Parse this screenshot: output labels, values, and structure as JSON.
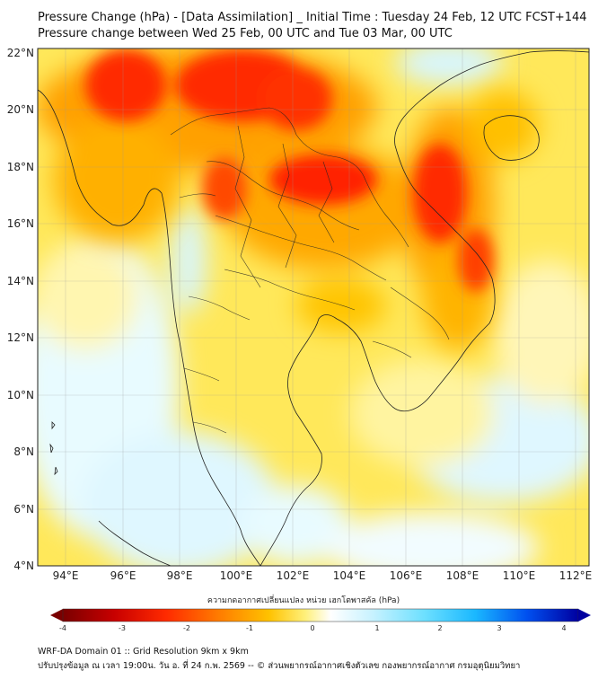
{
  "title_line1": "Pressure Change (hPa) - [Data Assimilation] _ Initial Time : Tuesday 24 Feb, 12 UTC FCST+144",
  "title_line2": "Pressure change between Wed 25 Feb, 00 UTC and Tue 03 Mar, 00 UTC",
  "lat_labels": [
    "22°N",
    "20°N",
    "18°N",
    "16°N",
    "14°N",
    "12°N",
    "10°N",
    "8°N",
    "6°N",
    "4°N"
  ],
  "lon_labels": [
    "94°E",
    "96°E",
    "98°E",
    "100°E",
    "102°E",
    "104°E",
    "106°E",
    "108°E",
    "110°E",
    "112°E"
  ],
  "colorbar": {
    "title": "ความกดอากาศเปลี่ยนแปลง หน่วย เฮกโตพาสคัล (hPa)",
    "ticks": [
      "-4",
      "-3",
      "-2",
      "-1",
      "0",
      "1",
      "2",
      "3",
      "4"
    ],
    "colors": [
      "#7a0000",
      "#d40000",
      "#ff3a00",
      "#ff9a00",
      "#ffd400",
      "#ffffc0",
      "#ffffff",
      "#d8f6ff",
      "#8ee8ff",
      "#22c4ff",
      "#0066ff",
      "#0000b0"
    ]
  },
  "footer_line1": "WRF-DA Domain 01 :: Grid Resolution 9km x 9km",
  "footer_line2": "ปรับปรุงข้อมูล ณ เวลา 19:00น. วัน อ. ที่ 24 ก.พ. 2569 -- © ส่วนพยากรณ์อากาศเชิงตัวเลข กองพยากรณ์อากาศ กรมอุตุนิยมวิทยา"
}
